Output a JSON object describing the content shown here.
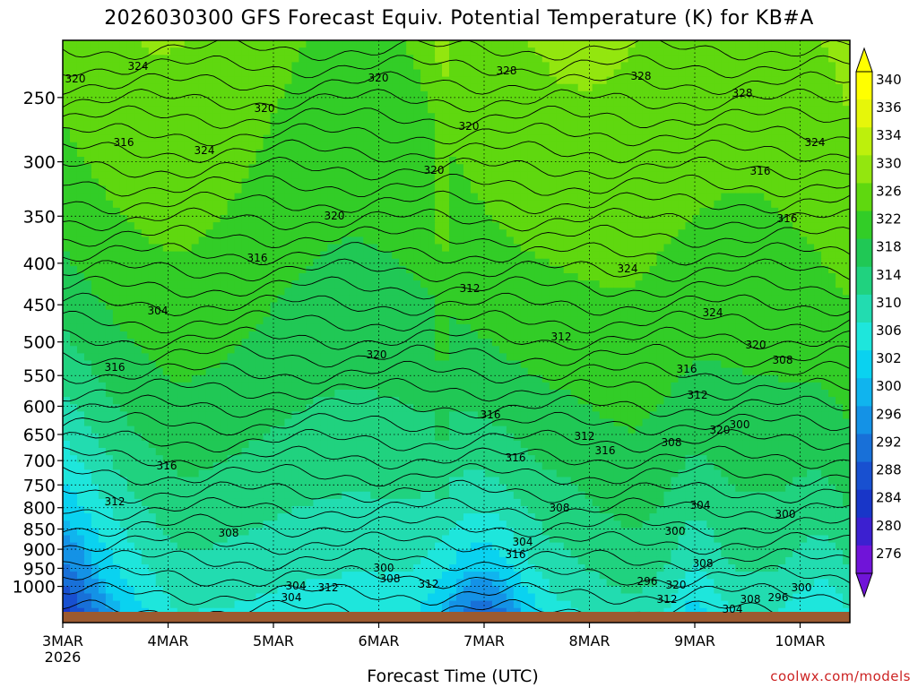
{
  "title": "2026030300 GFS Forecast Equiv. Potential Temperature (K) for KB#A",
  "credit": "coolwx.com/models",
  "credit_color": "#cc2222",
  "chart_data": {
    "type": "heatmap",
    "title": "2026030300 GFS Forecast Equiv. Potential Temperature (K) for KB#A",
    "xlabel": "Forecast Time (UTC)",
    "ylabel": "",
    "x_ticks": [
      "3MAR\n2026",
      "4MAR",
      "5MAR",
      "6MAR",
      "7MAR",
      "8MAR",
      "9MAR",
      "10MAR"
    ],
    "x_range_days": [
      0,
      7.5
    ],
    "y_scale": "log",
    "y_ticks": [
      250,
      300,
      350,
      400,
      450,
      500,
      550,
      600,
      650,
      700,
      750,
      800,
      850,
      900,
      950,
      1000
    ],
    "y_range": [
      200,
      1040
    ],
    "grid": true,
    "colorbar": {
      "labels": [
        340,
        336,
        334,
        330,
        326,
        322,
        318,
        314,
        310,
        306,
        302,
        300,
        296,
        292,
        288,
        284,
        280,
        276
      ],
      "colors": [
        "#ffff00",
        "#e6f60a",
        "#bdf00c",
        "#93e60f",
        "#5fd80f",
        "#32cd27",
        "#20c855",
        "#20d27f",
        "#22dcb0",
        "#1ee6dc",
        "#0ad2f0",
        "#10b4ee",
        "#1492e6",
        "#1870d8",
        "#1850d0",
        "#1836c8",
        "#3c20d0",
        "#7014d8"
      ]
    },
    "contour_interval_K": 2,
    "contour_labels": [
      320,
      324,
      320,
      328,
      328,
      328,
      316,
      320,
      324,
      320,
      320,
      320,
      324,
      316,
      316,
      324,
      312,
      316,
      324,
      304,
      316,
      320,
      312,
      320,
      316,
      316,
      312,
      308,
      312,
      316,
      320,
      308,
      300,
      316,
      316,
      312,
      308,
      308,
      304,
      304,
      300,
      316,
      300,
      304,
      312,
      300,
      308,
      296,
      320,
      308,
      312,
      304,
      312,
      308,
      304,
      296,
      300
    ],
    "ground": "brown band at surface"
  }
}
